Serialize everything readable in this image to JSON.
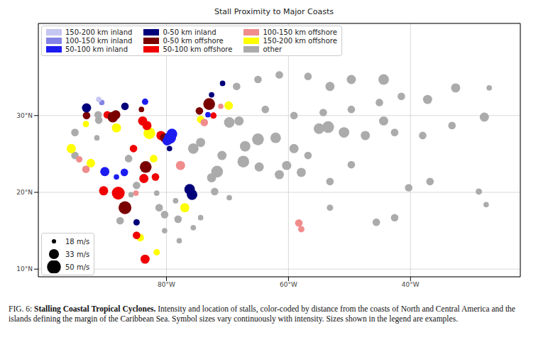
{
  "chart_data": {
    "type": "scatter",
    "title": "Stall Proximity to Major Coasts",
    "xlim": [
      -101,
      -22
    ],
    "ylim": [
      9,
      42
    ],
    "xticks": [
      {
        "value": -80,
        "label": "80°W"
      },
      {
        "value": -60,
        "label": "60°W"
      },
      {
        "value": -40,
        "label": "40°W"
      }
    ],
    "yticks": [
      {
        "value": 10,
        "label": "10°N"
      },
      {
        "value": 20,
        "label": "20°N"
      },
      {
        "value": 30,
        "label": "30°N"
      }
    ],
    "grid": true,
    "legend": "upper left",
    "size_legend": [
      {
        "value": 18,
        "label": "18 m/s"
      },
      {
        "value": 33,
        "label": "33 m/s"
      },
      {
        "value": 50,
        "label": "50 m/s"
      }
    ],
    "series": [
      {
        "name": "150-200 km inland",
        "color": "#c6c6f2",
        "points": [
          [
            -91.1,
            32.1,
            20
          ]
        ]
      },
      {
        "name": "100-150 km inland",
        "color": "#8484e6",
        "points": [
          [
            -90.6,
            31.7,
            20
          ]
        ]
      },
      {
        "name": "50-100 km inland",
        "color": "#1c1cf0",
        "points": [
          [
            -90.1,
            22.7,
            30
          ],
          [
            -88.2,
            22.0,
            20
          ],
          [
            -86.9,
            22.6,
            25
          ],
          [
            -83.5,
            31.8,
            22
          ],
          [
            -79.4,
            27.1,
            40
          ],
          [
            -79.1,
            27.6,
            35
          ],
          [
            -79.9,
            26.7,
            30
          ],
          [
            -73.2,
            30.1,
            20
          ]
        ]
      },
      {
        "name": "0-50 km inland",
        "color": "#00007a",
        "points": [
          [
            -93.1,
            31.0,
            30
          ],
          [
            -86.8,
            31.2,
            25
          ],
          [
            -84.9,
            16.1,
            22
          ],
          [
            -79.5,
            25.7,
            20
          ],
          [
            -76.2,
            20.4,
            35
          ],
          [
            -75.8,
            19.7,
            35
          ],
          [
            -72.6,
            32.7,
            20
          ],
          [
            -70.8,
            34.2,
            20
          ]
        ]
      },
      {
        "name": "0-50 km offshore",
        "color": "#7a0000",
        "points": [
          [
            -93.1,
            30.0,
            25
          ],
          [
            -88.8,
            29.8,
            35
          ],
          [
            -88.3,
            30.1,
            30
          ],
          [
            -84.1,
            30.8,
            20
          ],
          [
            -83.4,
            23.3,
            40
          ],
          [
            -86.8,
            18.0,
            45
          ],
          [
            -79.7,
            26.9,
            35
          ],
          [
            -73.0,
            31.5,
            40
          ],
          [
            -74.6,
            30.6,
            25
          ],
          [
            -80.3,
            27.1,
            30
          ]
        ]
      },
      {
        "name": "50-100 km offshore",
        "color": "#f00000",
        "points": [
          [
            -87.9,
            19.9,
            45
          ],
          [
            -83.7,
            21.8,
            30
          ],
          [
            -83.9,
            29.3,
            30
          ],
          [
            -83.2,
            28.7,
            30
          ],
          [
            -80.9,
            27.4,
            30
          ],
          [
            -85.4,
            25.7,
            25
          ],
          [
            -81.8,
            22.0,
            25
          ],
          [
            -84.9,
            14.4,
            25
          ],
          [
            -83.5,
            11.3,
            30
          ],
          [
            -89.7,
            30.1,
            25
          ],
          [
            -72.3,
            30.0,
            22
          ],
          [
            -90.3,
            20.2,
            30
          ]
        ]
      },
      {
        "name": "100-150 km offshore",
        "color": "#f08c8c",
        "points": [
          [
            -93.2,
            23.0,
            25
          ],
          [
            -77.7,
            23.5,
            30
          ],
          [
            -73.8,
            29.1,
            25
          ],
          [
            -71.1,
            31.2,
            20
          ],
          [
            -58.3,
            16.0,
            25
          ],
          [
            -57.9,
            15.2,
            22
          ],
          [
            -85.0,
            19.9,
            20
          ],
          [
            -94.3,
            24.3,
            22
          ]
        ]
      },
      {
        "name": "150-200 km offshore",
        "color": "#ffff00",
        "points": [
          [
            -93.2,
            28.9,
            22
          ],
          [
            -95.6,
            25.7,
            30
          ],
          [
            -92.4,
            23.8,
            28
          ],
          [
            -88.2,
            28.4,
            30
          ],
          [
            -82.8,
            27.7,
            40
          ],
          [
            -82.1,
            24.4,
            25
          ],
          [
            -77.0,
            18.0,
            30
          ],
          [
            -84.3,
            14.1,
            25
          ],
          [
            -81.6,
            12.2,
            22
          ],
          [
            -74.4,
            29.5,
            25
          ],
          [
            -69.8,
            31.3,
            28
          ]
        ]
      },
      {
        "name": "other",
        "color": "#ababab",
        "points": [
          [
            -91.1,
            29.4,
            25
          ],
          [
            -91.4,
            27.1,
            20
          ],
          [
            -95.0,
            24.8,
            25
          ],
          [
            -86.2,
            24.4,
            25
          ],
          [
            -84.9,
            20.9,
            25
          ],
          [
            -85.8,
            19.7,
            20
          ],
          [
            -87.6,
            16.3,
            25
          ],
          [
            -81.2,
            18.0,
            25
          ],
          [
            -81.6,
            19.9,
            20
          ],
          [
            -80.3,
            17.1,
            25
          ],
          [
            -78.1,
            16.5,
            25
          ],
          [
            -74.4,
            16.7,
            20
          ],
          [
            -75.6,
            15.4,
            20
          ],
          [
            -72.6,
            21.9,
            30
          ],
          [
            -72.1,
            20.1,
            25
          ],
          [
            -69.7,
            19.3,
            20
          ],
          [
            -75.6,
            25.7,
            35
          ],
          [
            -74.4,
            26.5,
            30
          ],
          [
            -71.7,
            22.7,
            40
          ],
          [
            -70.9,
            24.8,
            30
          ],
          [
            -69.7,
            29.1,
            35
          ],
          [
            -68.1,
            29.3,
            30
          ],
          [
            -67.4,
            24.0,
            40
          ],
          [
            -67.1,
            26.0,
            35
          ],
          [
            -65.0,
            26.9,
            40
          ],
          [
            -62.1,
            27.1,
            35
          ],
          [
            -64.8,
            23.3,
            30
          ],
          [
            -61.5,
            22.3,
            30
          ],
          [
            -60.3,
            23.5,
            30
          ],
          [
            -57.9,
            22.6,
            30
          ],
          [
            -55.0,
            28.3,
            35
          ],
          [
            -53.5,
            28.5,
            40
          ],
          [
            -50.9,
            27.8,
            35
          ],
          [
            -47.4,
            27.4,
            30
          ],
          [
            -44.4,
            29.3,
            30
          ],
          [
            -42.6,
            27.8,
            25
          ],
          [
            -38.0,
            27.4,
            25
          ],
          [
            -32.6,
            33.6,
            30
          ],
          [
            -27.9,
            29.8,
            30
          ],
          [
            -27.1,
            33.6,
            20
          ],
          [
            -33.2,
            28.7,
            25
          ],
          [
            -44.4,
            34.7,
            35
          ],
          [
            -49.7,
            34.7,
            30
          ],
          [
            -53.2,
            33.8,
            30
          ],
          [
            -56.8,
            35.1,
            25
          ],
          [
            -61.5,
            35.3,
            25
          ],
          [
            -65.0,
            34.7,
            25
          ],
          [
            -68.5,
            33.8,
            25
          ],
          [
            -41.5,
            32.5,
            25
          ],
          [
            -37.2,
            32.1,
            30
          ],
          [
            -45.1,
            31.7,
            25
          ],
          [
            -49.7,
            30.8,
            25
          ],
          [
            -54.3,
            30.4,
            25
          ],
          [
            -59.1,
            30.0,
            25
          ],
          [
            -63.8,
            30.8,
            25
          ],
          [
            -59.1,
            25.7,
            30
          ],
          [
            -56.8,
            24.8,
            25
          ],
          [
            -53.2,
            21.4,
            25
          ],
          [
            -49.7,
            23.6,
            25
          ],
          [
            -40.3,
            20.6,
            25
          ],
          [
            -36.8,
            21.4,
            25
          ],
          [
            -28.8,
            20.1,
            22
          ],
          [
            -27.6,
            18.4,
            20
          ],
          [
            -42.6,
            16.7,
            25
          ],
          [
            -45.6,
            16.1,
            25
          ],
          [
            -53.2,
            18.0,
            22
          ],
          [
            -80.3,
            15.0,
            20
          ],
          [
            -77.9,
            13.7,
            20
          ],
          [
            -78.5,
            18.9,
            20
          ],
          [
            -95.0,
            27.8,
            25
          ],
          [
            -91.2,
            30.1,
            25
          ]
        ]
      }
    ]
  },
  "caption": {
    "label": "FIG. 6:",
    "title": "Stalling Coastal Tropical Cyclones.",
    "text": "Intensity and location of stalls, color-coded by distance from the coasts of North and Central America and the islands defining the margin of the Caribbean Sea. Symbol sizes vary continuously with intensity. Sizes shown in the legend are examples."
  }
}
